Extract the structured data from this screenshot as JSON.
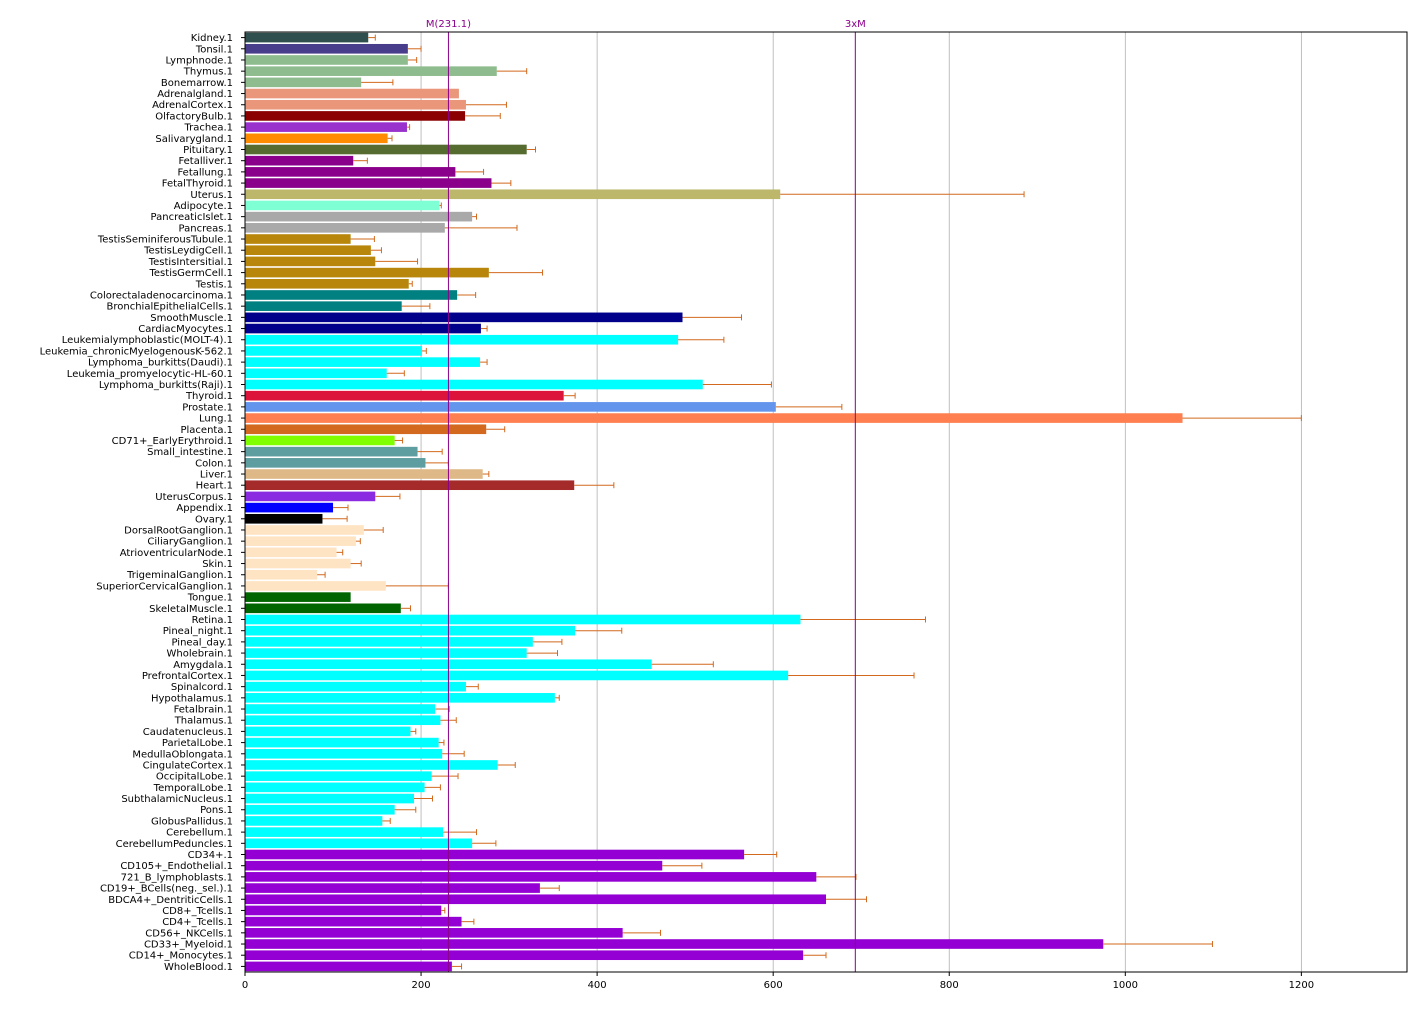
{
  "chart_data": {
    "type": "bar",
    "orientation": "horizontal",
    "title": "",
    "xlabel": "",
    "ylabel": "",
    "xlim": [
      0,
      1320
    ],
    "xticks": [
      0,
      200,
      400,
      600,
      800,
      1000,
      1200
    ],
    "grid": "vertical",
    "reference_lines": [
      {
        "label": "M(231.1)",
        "value": 231.1,
        "color": "#8b008b"
      },
      {
        "label": "3xM",
        "value": 693.3,
        "color": "#8b008b"
      }
    ],
    "error_bar_color": "#d2691e",
    "bars": [
      {
        "label": "Kidney.1",
        "value": 140,
        "err": 8,
        "color": "#2f4f4f"
      },
      {
        "label": "Tonsil.1",
        "value": 185,
        "err": 15,
        "color": "#483d8b"
      },
      {
        "label": "Lymphnode.1",
        "value": 185,
        "err": 10,
        "color": "#8fbc8f"
      },
      {
        "label": "Thymus.1",
        "value": 286,
        "err": 34,
        "color": "#8fbc8f"
      },
      {
        "label": "Bonemarrow.1",
        "value": 132,
        "err": 36,
        "color": "#8fbc8f"
      },
      {
        "label": "Adrenalgland.1",
        "value": 243,
        "err": 0,
        "color": "#e9967a"
      },
      {
        "label": "AdrenalCortex.1",
        "value": 251,
        "err": 46,
        "color": "#e9967a"
      },
      {
        "label": "OlfactoryBulb.1",
        "value": 250,
        "err": 40,
        "color": "#8b0000"
      },
      {
        "label": "Trachea.1",
        "value": 184,
        "err": 3,
        "color": "#9932cc"
      },
      {
        "label": "Salivarygland.1",
        "value": 162,
        "err": 5,
        "color": "#ff8c00"
      },
      {
        "label": "Pituitary.1",
        "value": 320,
        "err": 10,
        "color": "#556b2f"
      },
      {
        "label": "Fetalliver.1",
        "value": 123,
        "err": 16,
        "color": "#8b008b"
      },
      {
        "label": "Fetallung.1",
        "value": 239,
        "err": 32,
        "color": "#8b008b"
      },
      {
        "label": "FetalThyroid.1",
        "value": 280,
        "err": 22,
        "color": "#8b008b"
      },
      {
        "label": "Uterus.1",
        "value": 608,
        "err": 277,
        "color": "#bdb76b"
      },
      {
        "label": "Adipocyte.1",
        "value": 221,
        "err": 2,
        "color": "#7fffd4"
      },
      {
        "label": "PancreaticIslet.1",
        "value": 258,
        "err": 5,
        "color": "#a9a9a9"
      },
      {
        "label": "Pancreas.1",
        "value": 227,
        "err": 82,
        "color": "#a9a9a9"
      },
      {
        "label": "TestisSeminiferousTubule.1",
        "value": 120,
        "err": 27,
        "color": "#b8860b"
      },
      {
        "label": "TestisLeydigCell.1",
        "value": 143,
        "err": 12,
        "color": "#b8860b"
      },
      {
        "label": "TestisIntersitial.1",
        "value": 148,
        "err": 48,
        "color": "#b8860b"
      },
      {
        "label": "TestisGermCell.1",
        "value": 277,
        "err": 61,
        "color": "#b8860b"
      },
      {
        "label": "Testis.1",
        "value": 186,
        "err": 4,
        "color": "#b8860b"
      },
      {
        "label": "Colorectaladenocarcinoma.1",
        "value": 241,
        "err": 21,
        "color": "#008080"
      },
      {
        "label": "BronchialEpithelialCells.1",
        "value": 178,
        "err": 32,
        "color": "#008080"
      },
      {
        "label": "SmoothMuscle.1",
        "value": 497,
        "err": 67,
        "color": "#00008b"
      },
      {
        "label": "CardiacMyocytes.1",
        "value": 268,
        "err": 7,
        "color": "#00008b"
      },
      {
        "label": "Leukemialymphoblastic(MOLT-4).1",
        "value": 492,
        "err": 52,
        "color": "#00ffff"
      },
      {
        "label": "Leukemia_chronicMyelogenousK-562.1",
        "value": 201,
        "err": 5,
        "color": "#00ffff"
      },
      {
        "label": "Lymphoma_burkitts(Daudi).1",
        "value": 267,
        "err": 8,
        "color": "#00ffff"
      },
      {
        "label": "Leukemia_promyelocytic-HL-60.1",
        "value": 161,
        "err": 20,
        "color": "#00ffff"
      },
      {
        "label": "Lymphoma_burkitts(Raji).1",
        "value": 520,
        "err": 78,
        "color": "#00ffff"
      },
      {
        "label": "Thyroid.1",
        "value": 362,
        "err": 13,
        "color": "#dc143c"
      },
      {
        "label": "Prostate.1",
        "value": 603,
        "err": 75,
        "color": "#6495ed"
      },
      {
        "label": "Lung.1",
        "value": 1065,
        "err": 135,
        "color": "#ff7f50"
      },
      {
        "label": "Placenta.1",
        "value": 274,
        "err": 21,
        "color": "#d2691e"
      },
      {
        "label": "CD71+_EarlyErythroid.1",
        "value": 170,
        "err": 9,
        "color": "#7fff00"
      },
      {
        "label": "Small_intestine.1",
        "value": 196,
        "err": 28,
        "color": "#5f9ea0"
      },
      {
        "label": "Colon.1",
        "value": 205,
        "err": 26,
        "color": "#5f9ea0"
      },
      {
        "label": "Liver.1",
        "value": 270,
        "err": 7,
        "color": "#deb887"
      },
      {
        "label": "Heart.1",
        "value": 374,
        "err": 45,
        "color": "#a52a2a"
      },
      {
        "label": "UterusCorpus.1",
        "value": 148,
        "err": 28,
        "color": "#8a2be2"
      },
      {
        "label": "Appendix.1",
        "value": 100,
        "err": 17,
        "color": "#0000ff"
      },
      {
        "label": "Ovary.1",
        "value": 88,
        "err": 28,
        "color": "#000000"
      },
      {
        "label": "DorsalRootGanglion.1",
        "value": 135,
        "err": 22,
        "color": "#ffe4c4"
      },
      {
        "label": "CiliaryGanglion.1",
        "value": 126,
        "err": 5,
        "color": "#ffe4c4"
      },
      {
        "label": "AtrioventricularNode.1",
        "value": 104,
        "err": 7,
        "color": "#ffe4c4"
      },
      {
        "label": "Skin.1",
        "value": 120,
        "err": 12,
        "color": "#ffe4c4"
      },
      {
        "label": "TrigeminalGanglion.1",
        "value": 82,
        "err": 9,
        "color": "#ffe4c4"
      },
      {
        "label": "SuperiorCervicalGanglion.1",
        "value": 160,
        "err": 71,
        "color": "#ffe4c4"
      },
      {
        "label": "Tongue.1",
        "value": 120,
        "err": 0,
        "color": "#006400"
      },
      {
        "label": "SkeletalMuscle.1",
        "value": 177,
        "err": 11,
        "color": "#006400"
      },
      {
        "label": "Retina.1",
        "value": 631,
        "err": 142,
        "color": "#00ffff"
      },
      {
        "label": "Pineal_night.1",
        "value": 375,
        "err": 53,
        "color": "#00ffff"
      },
      {
        "label": "Pineal_day.1",
        "value": 327,
        "err": 33,
        "color": "#00ffff"
      },
      {
        "label": "Wholebrain.1",
        "value": 320,
        "err": 35,
        "color": "#00ffff"
      },
      {
        "label": "Amygdala.1",
        "value": 462,
        "err": 70,
        "color": "#00ffff"
      },
      {
        "label": "PrefrontalCortex.1",
        "value": 617,
        "err": 143,
        "color": "#00ffff"
      },
      {
        "label": "Spinalcord.1",
        "value": 251,
        "err": 14,
        "color": "#00ffff"
      },
      {
        "label": "Hypothalamus.1",
        "value": 352,
        "err": 5,
        "color": "#00ffff"
      },
      {
        "label": "Fetalbrain.1",
        "value": 216,
        "err": 16,
        "color": "#00ffff"
      },
      {
        "label": "Thalamus.1",
        "value": 222,
        "err": 18,
        "color": "#00ffff"
      },
      {
        "label": "Caudatenucleus.1",
        "value": 188,
        "err": 6,
        "color": "#00ffff"
      },
      {
        "label": "ParietalLobe.1",
        "value": 220,
        "err": 6,
        "color": "#00ffff"
      },
      {
        "label": "MedullaOblongata.1",
        "value": 224,
        "err": 25,
        "color": "#00ffff"
      },
      {
        "label": "CingulateCortex.1",
        "value": 287,
        "err": 20,
        "color": "#00ffff"
      },
      {
        "label": "OccipitalLobe.1",
        "value": 212,
        "err": 30,
        "color": "#00ffff"
      },
      {
        "label": "TemporalLobe.1",
        "value": 204,
        "err": 18,
        "color": "#00ffff"
      },
      {
        "label": "SubthalamicNucleus.1",
        "value": 192,
        "err": 21,
        "color": "#00ffff"
      },
      {
        "label": "Pons.1",
        "value": 170,
        "err": 24,
        "color": "#00ffff"
      },
      {
        "label": "GlobusPallidus.1",
        "value": 156,
        "err": 9,
        "color": "#00ffff"
      },
      {
        "label": "Cerebellum.1",
        "value": 225,
        "err": 38,
        "color": "#00ffff"
      },
      {
        "label": "CerebellumPeduncles.1",
        "value": 258,
        "err": 27,
        "color": "#00ffff"
      },
      {
        "label": "CD34+.1",
        "value": 567,
        "err": 37,
        "color": "#9400d3"
      },
      {
        "label": "CD105+_Endothelial.1",
        "value": 474,
        "err": 45,
        "color": "#9400d3"
      },
      {
        "label": "721_B_lymphoblasts.1",
        "value": 649,
        "err": 45,
        "color": "#9400d3"
      },
      {
        "label": "CD19+_BCells(neg._sel.).1",
        "value": 335,
        "err": 22,
        "color": "#9400d3"
      },
      {
        "label": "BDCA4+_DentriticCells.1",
        "value": 660,
        "err": 46,
        "color": "#9400d3"
      },
      {
        "label": "CD8+_Tcells.1",
        "value": 223,
        "err": 4,
        "color": "#9400d3"
      },
      {
        "label": "CD4+_Tcells.1",
        "value": 246,
        "err": 14,
        "color": "#9400d3"
      },
      {
        "label": "CD56+_NKCells.1",
        "value": 429,
        "err": 43,
        "color": "#9400d3"
      },
      {
        "label": "CD33+_Myeloid.1",
        "value": 975,
        "err": 124,
        "color": "#9400d3"
      },
      {
        "label": "CD14+_Monocytes.1",
        "value": 634,
        "err": 26,
        "color": "#9400d3"
      },
      {
        "label": "WholeBlood.1",
        "value": 235,
        "err": 11,
        "color": "#9400d3"
      }
    ]
  }
}
